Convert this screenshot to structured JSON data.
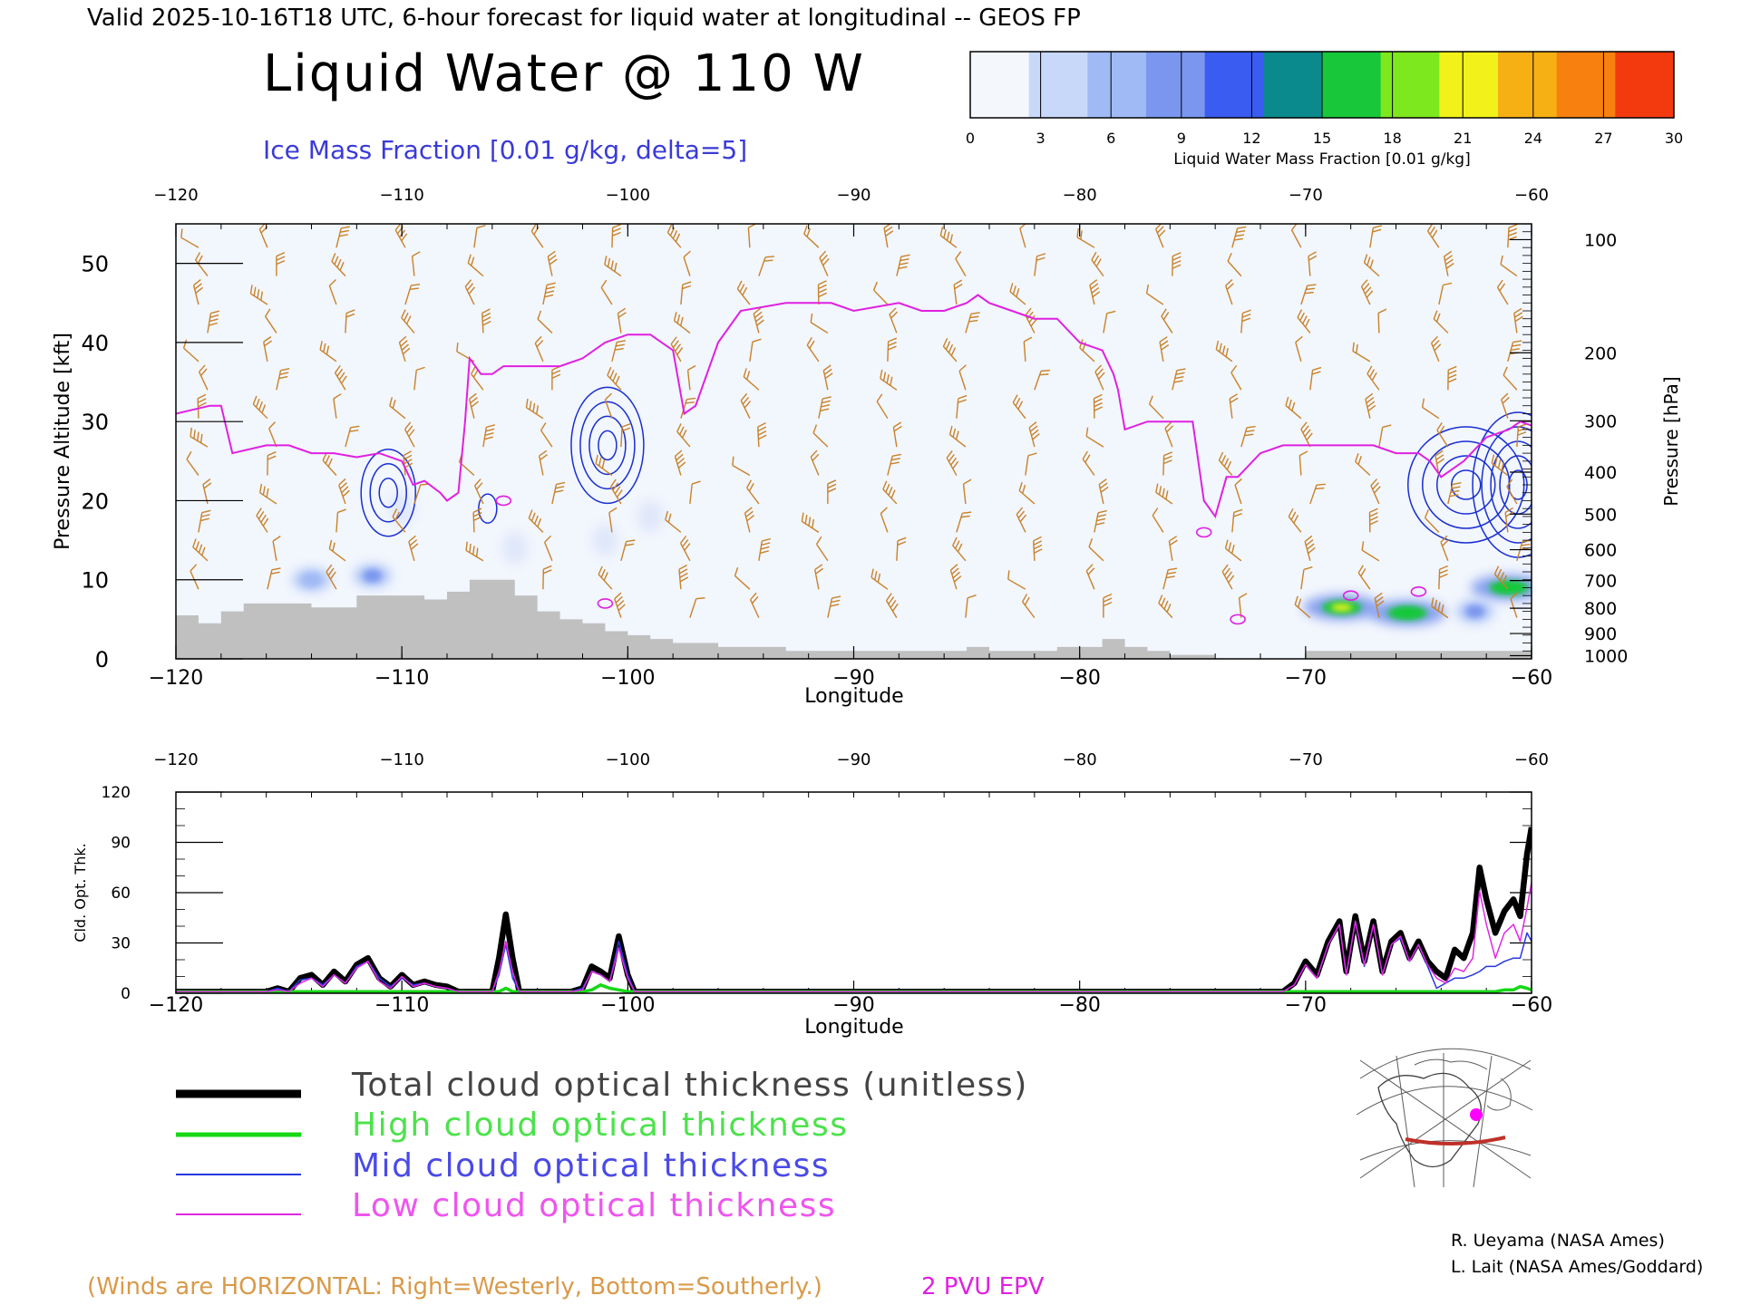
{
  "header": {
    "valid_line": "Valid 2025-10-16T18 UTC, 6-hour forecast for liquid water at longitudinal -- GEOS FP",
    "title": "Liquid Water @ 110 W",
    "subtitle": "Ice Mass Fraction [0.01 g/kg, delta=5]"
  },
  "colorbar": {
    "ticks": [
      "0",
      "3",
      "6",
      "9",
      "12",
      "15",
      "18",
      "21",
      "24",
      "27",
      "30"
    ],
    "label": "Liquid Water Mass Fraction [0.01 g/kg]",
    "colors": [
      "#f4f7fc",
      "#c8d8f8",
      "#9fbaf5",
      "#7a96ee",
      "#3a5cf0",
      "#0a8a8c",
      "#18c83a",
      "#7ee81e",
      "#f2f21a",
      "#f7b014",
      "#f7800f",
      "#f23a0e"
    ]
  },
  "colors": {
    "wind_barb": "#c8822a",
    "epv_line": "#e020e0",
    "ice_contour": "#1a2fd0",
    "terrain": "#c0c0c0",
    "background_field": "#f2f6fd"
  },
  "chart_data": [
    {
      "type": "heatmap",
      "title": "Liquid Water @ 110 W",
      "xlabel": "Longitude",
      "ylabel": "Pressure Altitude [kft]",
      "y2label": "Pressure [hPa]",
      "xlim": [
        -120,
        -60
      ],
      "ylim": [
        0,
        55
      ],
      "xticks": [
        "-120",
        "-110",
        "-100",
        "-90",
        "-80",
        "-70",
        "-60"
      ],
      "top_xticks": [
        "-120",
        "-110",
        "-100",
        "-90",
        "-80",
        "-70",
        "-60"
      ],
      "yticks": [
        "0",
        "10",
        "20",
        "30",
        "40",
        "50"
      ],
      "pressure_ticks": [
        {
          "hpa": "100",
          "kft": 53.0
        },
        {
          "hpa": "200",
          "kft": 38.7
        },
        {
          "hpa": "300",
          "kft": 30.1
        },
        {
          "hpa": "400",
          "kft": 23.6
        },
        {
          "hpa": "500",
          "kft": 18.3
        },
        {
          "hpa": "600",
          "kft": 13.8
        },
        {
          "hpa": "700",
          "kft": 9.9
        },
        {
          "hpa": "800",
          "kft": 6.4
        },
        {
          "hpa": "900",
          "kft": 3.2
        },
        {
          "hpa": "1000",
          "kft": 0.4
        }
      ],
      "epv_2pvu": {
        "name": "2 PVU EPV",
        "lon": [
          -120,
          -118.5,
          -118,
          -117.5,
          -116,
          -115,
          -114,
          -113,
          -112,
          -111,
          -110,
          -109.5,
          -109,
          -108.3,
          -108,
          -107.5,
          -107.2,
          -107,
          -106.5,
          -106,
          -105.5,
          -104.5,
          -104,
          -103,
          -102,
          -101,
          -100,
          -99,
          -98.5,
          -98,
          -97.5,
          -97,
          -96,
          -95,
          -93,
          -91,
          -90,
          -88,
          -87,
          -86,
          -85,
          -84.5,
          -84,
          -83,
          -82,
          -81,
          -80,
          -79,
          -78.5,
          -78.3,
          -78,
          -77,
          -76,
          -75,
          -74.7,
          -74.5,
          -74,
          -73.5,
          -73,
          -72,
          -71,
          -70,
          -69,
          -68,
          -67,
          -66,
          -65,
          -64.5,
          -64,
          -63,
          -62,
          -61,
          -60.5,
          -60
        ],
        "kft": [
          31,
          32,
          32,
          26,
          27,
          27,
          26,
          26,
          25.5,
          26,
          25,
          22,
          22.5,
          21,
          20,
          21,
          30,
          38,
          36,
          36,
          37,
          37,
          37,
          37,
          38,
          40,
          41,
          41,
          40,
          39,
          31,
          32,
          40,
          44,
          45,
          45,
          44,
          45,
          44,
          44,
          45,
          46,
          45,
          44,
          43,
          43,
          40,
          39,
          36,
          34,
          29,
          30,
          30,
          30,
          24,
          20,
          18,
          23,
          23,
          26,
          27,
          27,
          27,
          27,
          27,
          26,
          26,
          25,
          23,
          25,
          28,
          29,
          30,
          29.5
        ]
      },
      "ice_contours": [
        {
          "lon_center": -110.6,
          "kft_center": 21,
          "peak": 15
        },
        {
          "lon_center": -106.2,
          "kft_center": 19,
          "peak": 5
        },
        {
          "lon_center": -100.9,
          "kft_center": 27,
          "peak": 20
        },
        {
          "lon_center": -62.9,
          "kft_center": 22,
          "peak": 20
        },
        {
          "lon_center": -60.6,
          "kft_center": 22,
          "peak": 25
        }
      ],
      "liquid_water_blobs": [
        {
          "lon": -114,
          "kft": 10,
          "value": 5
        },
        {
          "lon": -111.3,
          "kft": 10.5,
          "value": 8
        },
        {
          "lon": -68.4,
          "kft": 6.5,
          "value": 20
        },
        {
          "lon": -65.5,
          "kft": 5.8,
          "value": 16
        },
        {
          "lon": -61.0,
          "kft": 9.0,
          "value": 17
        },
        {
          "lon": -62.5,
          "kft": 6.0,
          "value": 8
        }
      ],
      "terrain": {
        "lon": [
          -120,
          -119,
          -118,
          -117,
          -116,
          -115,
          -114,
          -113,
          -112,
          -111,
          -110,
          -109,
          -108,
          -107,
          -106,
          -105,
          -104,
          -103,
          -102,
          -101,
          -100,
          -99,
          -98,
          -97,
          -96,
          -95,
          -94,
          -93,
          -92,
          -91,
          -90,
          -89,
          -88,
          -87,
          -86,
          -85,
          -84,
          -83,
          -82,
          -81,
          -80,
          -79,
          -78,
          -77,
          -76,
          -75,
          -74,
          -73,
          -72,
          -71,
          -70,
          -69,
          -68,
          -67,
          -66,
          -65,
          -64,
          -63,
          -62,
          -61,
          -60
        ],
        "kft": [
          5.5,
          4.5,
          6,
          7,
          7,
          7,
          6.5,
          6.5,
          8,
          8,
          8,
          7.5,
          8.5,
          10,
          10,
          8,
          6,
          5,
          4.5,
          3.5,
          3,
          2.5,
          2,
          2,
          1.5,
          1.5,
          1.5,
          1,
          1,
          1,
          1,
          1,
          1,
          1,
          1,
          1.5,
          1,
          1,
          1,
          1.5,
          1.5,
          2.5,
          1.5,
          1,
          0.5,
          0.5,
          0,
          0,
          0,
          0,
          1,
          1,
          1,
          1,
          1,
          1,
          1,
          1,
          1,
          1,
          1
        ]
      },
      "wind_note": "(Winds are HORIZONTAL: Right=Westerly, Bottom=Southerly.)",
      "epv_label": "2 PVU EPV"
    },
    {
      "type": "line",
      "xlabel": "Longitude",
      "ylabel": "Cld. Opt. Thk.",
      "xlim": [
        -120,
        -60
      ],
      "ylim": [
        0,
        120
      ],
      "xticks": [
        "-120",
        "-110",
        "-100",
        "-90",
        "-80",
        "-70",
        "-60"
      ],
      "top_xticks": [
        "-120",
        "-110",
        "-100",
        "-90",
        "-80",
        "-70",
        "-60"
      ],
      "yticks": [
        "0",
        "30",
        "60",
        "90",
        "120"
      ],
      "x": [
        -120,
        -116,
        -115.5,
        -115,
        -114.5,
        -114,
        -113.5,
        -113,
        -112.5,
        -112,
        -111.5,
        -111,
        -110.5,
        -110,
        -109.5,
        -109,
        -108.5,
        -108,
        -107.5,
        -106,
        -105.7,
        -105.4,
        -105.1,
        -104.8,
        -103,
        -102.5,
        -102,
        -101.6,
        -101.2,
        -100.8,
        -100.4,
        -100,
        -99.7,
        -99.3,
        -99,
        -71,
        -70.5,
        -70,
        -69.5,
        -69,
        -68.5,
        -68.2,
        -67.8,
        -67.4,
        -67,
        -66.6,
        -66.2,
        -65.8,
        -65.4,
        -65,
        -64.6,
        -64.2,
        -63.8,
        -63.4,
        -63,
        -62.6,
        -62.3,
        -62,
        -61.6,
        -61.2,
        -60.8,
        -60.5,
        -60.2,
        -60
      ],
      "series": [
        {
          "name": "Total cloud optical thickness (unitless)",
          "values": [
            0,
            0,
            2,
            0,
            8,
            10,
            4,
            12,
            6,
            16,
            20,
            8,
            3,
            10,
            4,
            6,
            4,
            3,
            0,
            0,
            20,
            46,
            20,
            0,
            0,
            0,
            2,
            15,
            12,
            8,
            33,
            10,
            0,
            0,
            0,
            0,
            5,
            18,
            10,
            30,
            42,
            12,
            45,
            18,
            42,
            12,
            30,
            35,
            20,
            30,
            18,
            12,
            8,
            25,
            20,
            35,
            74,
            55,
            35,
            48,
            55,
            45,
            82,
            98
          ]
        },
        {
          "name": "High cloud optical thickness",
          "values": [
            0,
            0,
            0,
            0,
            0,
            0,
            0,
            0,
            0,
            0,
            0,
            0,
            0,
            0,
            0,
            0,
            0,
            0,
            0,
            0,
            0,
            2,
            0,
            0,
            0,
            0,
            0,
            1,
            4,
            2,
            1,
            0,
            0,
            0,
            0,
            0,
            0,
            0,
            0,
            0,
            0,
            0,
            0,
            0,
            0,
            0,
            0,
            0,
            0,
            0,
            0,
            0,
            0,
            0,
            0,
            0,
            0,
            0,
            0,
            1,
            1,
            3,
            2,
            1
          ]
        },
        {
          "name": "Mid cloud optical thickness",
          "values": [
            0,
            0,
            2,
            0,
            7,
            8,
            4,
            10,
            5,
            15,
            18,
            8,
            3,
            8,
            4,
            5,
            3,
            2,
            0,
            0,
            10,
            28,
            8,
            0,
            0,
            0,
            2,
            12,
            10,
            6,
            30,
            10,
            0,
            0,
            0,
            0,
            4,
            16,
            8,
            28,
            40,
            10,
            42,
            15,
            40,
            10,
            28,
            32,
            18,
            28,
            15,
            2,
            5,
            8,
            8,
            10,
            12,
            15,
            15,
            18,
            20,
            20,
            35,
            30
          ]
        },
        {
          "name": "Low cloud optical thickness",
          "values": [
            0,
            0,
            1,
            0,
            5,
            8,
            3,
            10,
            5,
            14,
            18,
            6,
            2,
            9,
            3,
            5,
            3,
            2,
            0,
            0,
            12,
            30,
            12,
            0,
            0,
            0,
            1,
            12,
            10,
            6,
            26,
            8,
            0,
            0,
            0,
            0,
            4,
            16,
            8,
            28,
            40,
            10,
            42,
            16,
            40,
            10,
            28,
            33,
            18,
            28,
            16,
            8,
            5,
            14,
            12,
            20,
            60,
            40,
            20,
            35,
            40,
            30,
            50,
            65
          ]
        }
      ]
    }
  ],
  "legend": {
    "items": [
      {
        "label": "Total cloud optical thickness (unitless)",
        "color": "#000000"
      },
      {
        "label": "High cloud optical thickness",
        "color": "#16d816"
      },
      {
        "label": "Mid cloud optical thickness",
        "color": "#2838e0"
      },
      {
        "label": "Low cloud optical thickness",
        "color": "#e028e0"
      }
    ]
  },
  "credits": {
    "line1": "R. Ueyama (NASA Ames)",
    "line2": "L. Lait (NASA Ames/Goddard)"
  }
}
